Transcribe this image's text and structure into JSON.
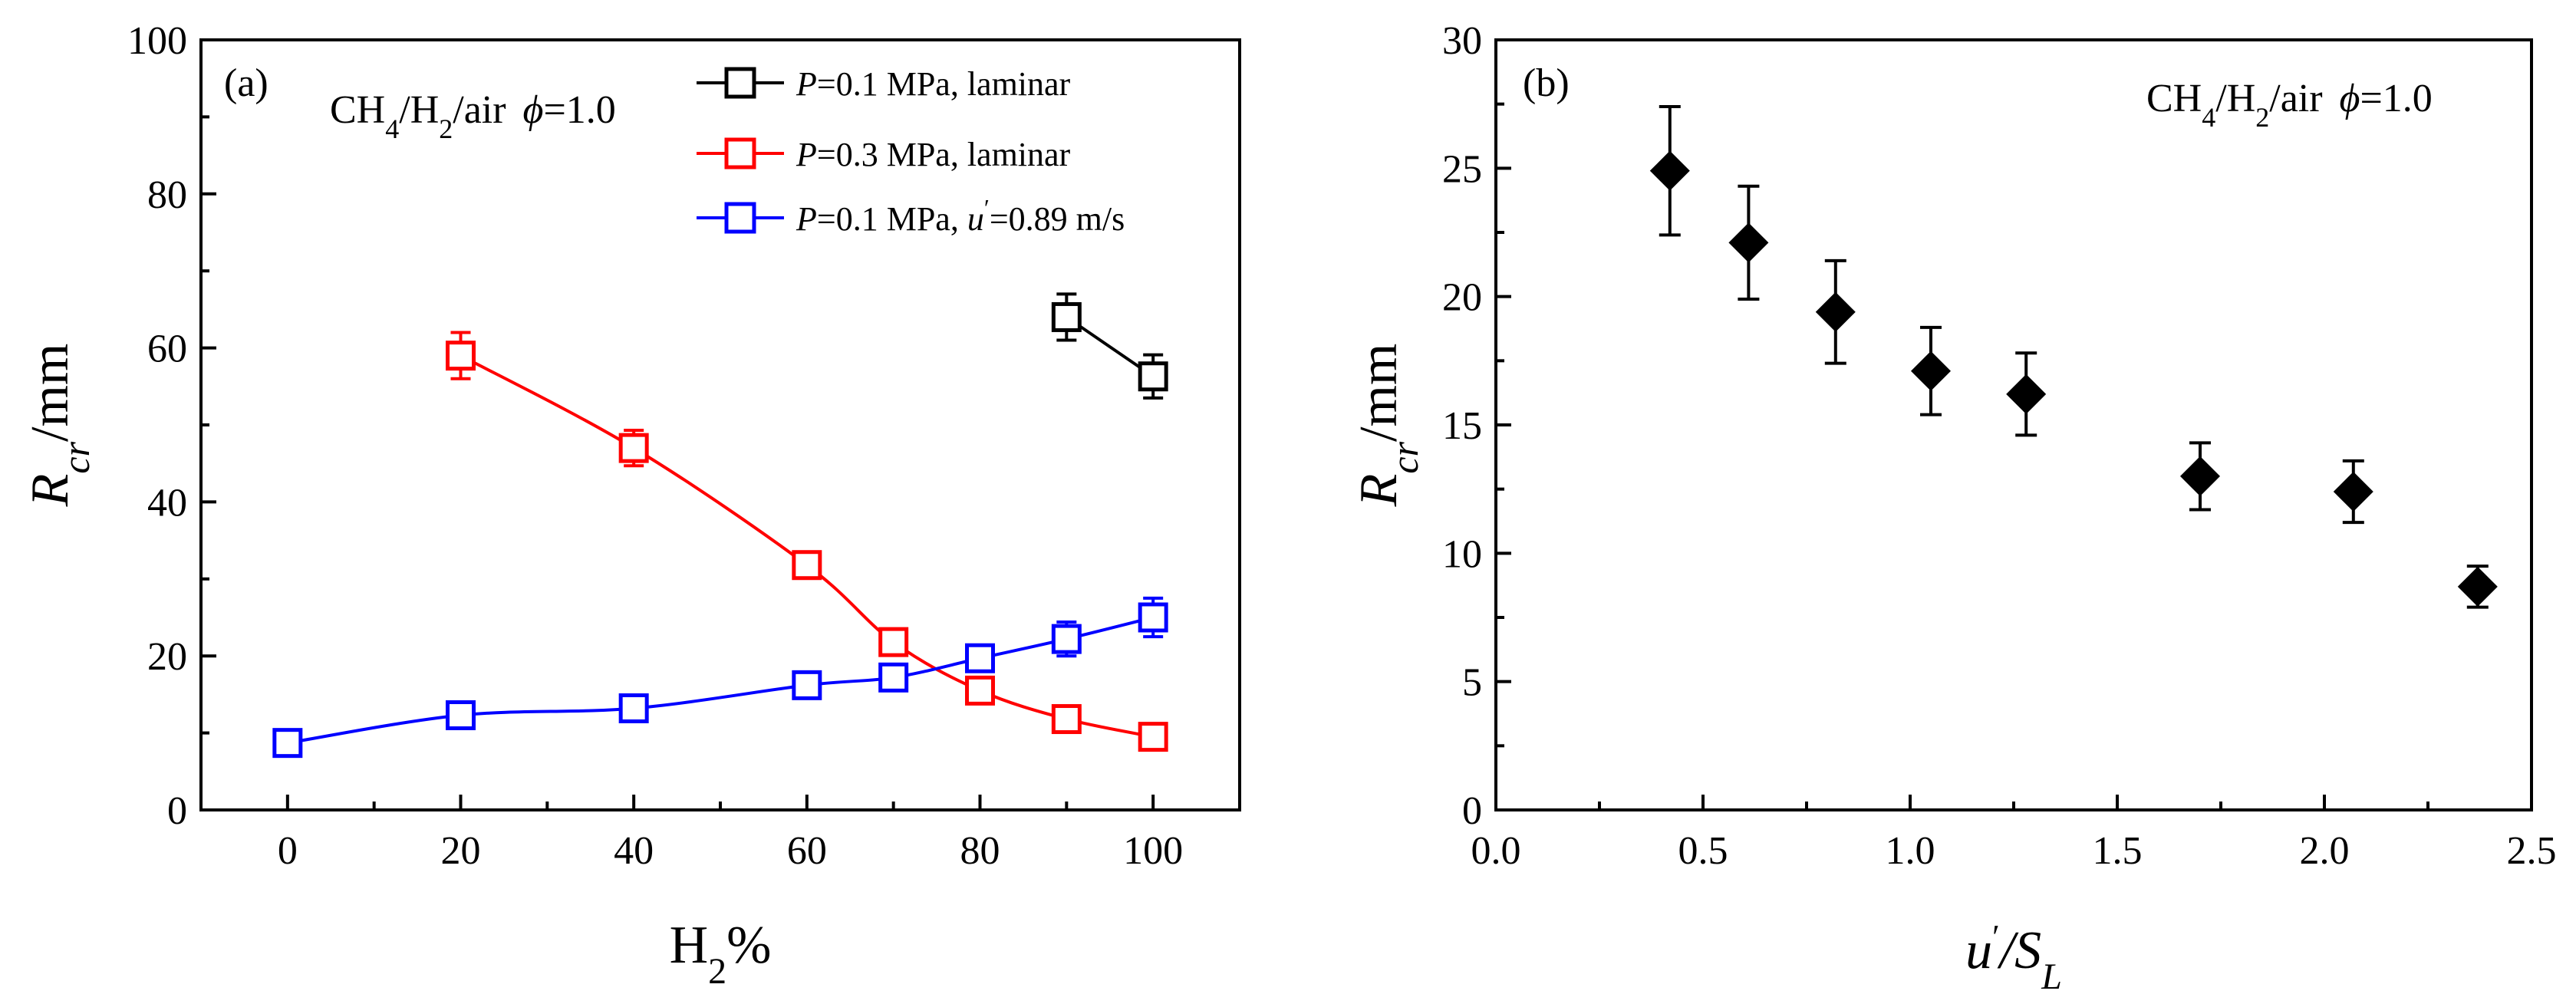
{
  "chart_data": [
    {
      "type": "line",
      "panel_label": "(a)",
      "annotation": {
        "species_parts": [
          "CH",
          "4",
          "/H",
          "2",
          "/air"
        ],
        "phi_symbol": "ϕ",
        "phi_value": "=1.0"
      },
      "xlabel": {
        "main": "H",
        "sub": "2",
        "tail": "%"
      },
      "ylabel": {
        "main": "R",
        "sub": "cr",
        "tail": "/mm"
      },
      "xlim": [
        -10,
        110
      ],
      "ylim": [
        0,
        100
      ],
      "xticks": [
        0,
        20,
        40,
        60,
        80,
        100
      ],
      "xtick_labels": [
        "0",
        "20",
        "40",
        "60",
        "80",
        "100"
      ],
      "yticks": [
        0,
        20,
        40,
        60,
        80,
        100
      ],
      "ytick_labels": [
        "0",
        "20",
        "40",
        "60",
        "80",
        "100"
      ],
      "legend_position": "top-right",
      "series": [
        {
          "name": "P=0.1 MPa, laminar",
          "legend": {
            "p": "P",
            "rest": "=0.1 MPa, laminar"
          },
          "color": "#000000",
          "x": [
            90,
            100
          ],
          "y": [
            64,
            56.3
          ],
          "err": [
            3,
            2.8
          ]
        },
        {
          "name": "P=0.3 MPa, laminar",
          "legend": {
            "p": "P",
            "rest": "=0.3 MPa, laminar"
          },
          "color": "#ff0000",
          "x": [
            20,
            40,
            60,
            70,
            80,
            90,
            100
          ],
          "y": [
            59,
            47,
            31.8,
            21.8,
            15.5,
            11.8,
            9.5
          ],
          "err": [
            3,
            2.3,
            1,
            1,
            1.2,
            1.2,
            1.2
          ]
        },
        {
          "name": "P=0.1 MPa, u'=0.89 m/s",
          "legend": {
            "p": "P",
            "mid": "=0.1 MPa, ",
            "u": "u",
            "prime": "′",
            "rest": "=0.89 m/s"
          },
          "color": "#0000ff",
          "x": [
            0,
            20,
            40,
            60,
            70,
            80,
            90,
            100
          ],
          "y": [
            8.7,
            12.3,
            13.2,
            16.2,
            17.2,
            19.7,
            22.2,
            25
          ],
          "err": [
            1.2,
            1.2,
            1.2,
            1.2,
            1.2,
            1.2,
            2.2,
            2.5
          ]
        }
      ]
    },
    {
      "type": "scatter",
      "panel_label": "(b)",
      "annotation": {
        "species_parts": [
          "CH",
          "4",
          "/H",
          "2",
          "/air"
        ],
        "phi_symbol": "ϕ",
        "phi_value": "=1.0"
      },
      "xlabel": {
        "main": "u",
        "prime": "′",
        "mid": "/S",
        "sub": "L"
      },
      "ylabel": {
        "main": "R",
        "sub": "cr",
        "tail": "/mm"
      },
      "xlim": [
        0,
        2.5
      ],
      "ylim": [
        0,
        30
      ],
      "xticks": [
        0,
        0.5,
        1.0,
        1.5,
        2.0,
        2.5
      ],
      "xtick_labels": [
        "0.0",
        "0.5",
        "1.0",
        "1.5",
        "2.0",
        "2.5"
      ],
      "yticks": [
        0,
        5,
        10,
        15,
        20,
        25,
        30
      ],
      "ytick_labels": [
        "0",
        "5",
        "10",
        "15",
        "20",
        "25",
        "30"
      ],
      "marker": "diamond",
      "color": "#000000",
      "x": [
        0.42,
        0.61,
        0.82,
        1.05,
        1.28,
        1.7,
        2.07,
        2.37
      ],
      "y": [
        24.9,
        22.1,
        19.4,
        17.1,
        16.2,
        13.0,
        12.4,
        8.7
      ],
      "err": [
        2.5,
        2.2,
        2.0,
        1.7,
        1.6,
        1.3,
        1.2,
        0.8
      ]
    }
  ]
}
